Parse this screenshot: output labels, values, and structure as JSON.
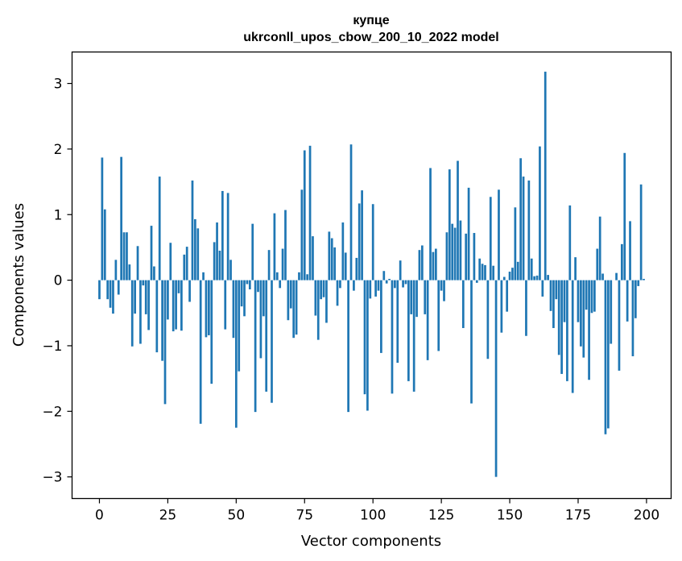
{
  "chart_data": {
    "type": "bar",
    "title": "купце",
    "subtitle": "ukrconll_upos_cbow_200_10_2022 model",
    "xlabel": "Vector components",
    "ylabel": "Components values",
    "xlim": [
      -10,
      209
    ],
    "ylim": [
      -3.33,
      3.48
    ],
    "xticks": [
      0,
      25,
      50,
      75,
      100,
      125,
      150,
      175,
      200
    ],
    "yticks": [
      -3,
      -2,
      -1,
      0,
      1,
      2,
      3
    ],
    "ytick_labels": [
      "−3",
      "−2",
      "−1",
      "0",
      "1",
      "2",
      "3"
    ],
    "bar_color": "#1f77b4",
    "grid": false,
    "legend": "none",
    "x": [
      0,
      1,
      2,
      3,
      4,
      5,
      6,
      7,
      8,
      9,
      10,
      11,
      12,
      13,
      14,
      15,
      16,
      17,
      18,
      19,
      20,
      21,
      22,
      23,
      24,
      25,
      26,
      27,
      28,
      29,
      30,
      31,
      32,
      33,
      34,
      35,
      36,
      37,
      38,
      39,
      40,
      41,
      42,
      43,
      44,
      45,
      46,
      47,
      48,
      49,
      50,
      51,
      52,
      53,
      54,
      55,
      56,
      57,
      58,
      59,
      60,
      61,
      62,
      63,
      64,
      65,
      66,
      67,
      68,
      69,
      70,
      71,
      72,
      73,
      74,
      75,
      76,
      77,
      78,
      79,
      80,
      81,
      82,
      83,
      84,
      85,
      86,
      87,
      88,
      89,
      90,
      91,
      92,
      93,
      94,
      95,
      96,
      97,
      98,
      99,
      100,
      101,
      102,
      103,
      104,
      105,
      106,
      107,
      108,
      109,
      110,
      111,
      112,
      113,
      114,
      115,
      116,
      117,
      118,
      119,
      120,
      121,
      122,
      123,
      124,
      125,
      126,
      127,
      128,
      129,
      130,
      131,
      132,
      133,
      134,
      135,
      136,
      137,
      138,
      139,
      140,
      141,
      142,
      143,
      144,
      145,
      146,
      147,
      148,
      149,
      150,
      151,
      152,
      153,
      154,
      155,
      156,
      157,
      158,
      159,
      160,
      161,
      162,
      163,
      164,
      165,
      166,
      167,
      168,
      169,
      170,
      171,
      172,
      173,
      174,
      175,
      176,
      177,
      178,
      179,
      180,
      181,
      182,
      183,
      184,
      185,
      186,
      187,
      188,
      189,
      190,
      191,
      192,
      193,
      194,
      195,
      196,
      197,
      198,
      199
    ],
    "values": [
      -0.29,
      1.87,
      1.08,
      -0.29,
      -0.42,
      -0.51,
      0.31,
      -0.22,
      1.88,
      0.73,
      0.73,
      0.24,
      -1.01,
      -0.51,
      0.52,
      -0.97,
      -0.08,
      -0.52,
      -0.76,
      0.83,
      0.21,
      -1.1,
      1.58,
      -1.23,
      -1.89,
      -0.6,
      0.57,
      -0.78,
      -0.75,
      -0.2,
      -0.77,
      0.39,
      0.51,
      -0.33,
      1.52,
      0.93,
      0.79,
      -2.19,
      0.12,
      -0.87,
      -0.84,
      -1.58,
      0.58,
      0.88,
      0.45,
      1.36,
      -0.75,
      1.33,
      0.31,
      -0.88,
      -2.25,
      -1.39,
      -0.4,
      -0.55,
      -0.06,
      -0.14,
      0.86,
      -2.01,
      -0.18,
      -1.19,
      -0.55,
      -1.7,
      0.46,
      -1.87,
      1.02,
      0.12,
      -0.12,
      0.48,
      1.07,
      -0.61,
      -0.43,
      -0.88,
      -0.83,
      0.12,
      1.38,
      1.98,
      0.09,
      2.05,
      0.67,
      -0.54,
      -0.91,
      -0.29,
      -0.26,
      -0.65,
      0.74,
      0.64,
      0.5,
      -0.39,
      -0.12,
      0.88,
      0.42,
      -2.01,
      2.07,
      -0.16,
      0.34,
      1.17,
      1.37,
      -1.74,
      -1.99,
      -0.28,
      1.16,
      -0.25,
      -0.16,
      -1.11,
      0.14,
      -0.05,
      0.02,
      -1.73,
      -0.12,
      -1.26,
      0.3,
      -0.11,
      -0.06,
      -1.54,
      -0.52,
      -1.7,
      -0.56,
      0.46,
      0.53,
      -0.52,
      -1.22,
      1.71,
      0.43,
      0.48,
      -1.08,
      -0.16,
      -0.32,
      0.73,
      1.69,
      0.86,
      0.8,
      1.82,
      0.91,
      -0.73,
      0.71,
      1.41,
      -1.88,
      0.72,
      -0.04,
      0.33,
      0.25,
      0.23,
      -1.2,
      1.27,
      0.22,
      -3.0,
      1.38,
      -0.8,
      0.05,
      -0.48,
      0.13,
      0.19,
      1.11,
      0.28,
      1.86,
      1.58,
      -0.85,
      1.52,
      0.33,
      0.06,
      0.07,
      2.04,
      -0.25,
      3.18,
      0.08,
      -0.47,
      -0.73,
      -0.29,
      -1.14,
      -1.43,
      -0.64,
      -1.54,
      1.14,
      -1.72,
      0.35,
      -0.64,
      -1.01,
      -1.18,
      -0.45,
      -1.52,
      -0.5,
      -0.48,
      0.48,
      0.97,
      0.1,
      -2.35,
      -2.26,
      -0.97,
      0.0,
      0.11,
      -1.38,
      0.55,
      1.94,
      -0.63,
      0.9,
      -1.16,
      -0.58,
      -0.09,
      1.46,
      0.02
    ]
  }
}
